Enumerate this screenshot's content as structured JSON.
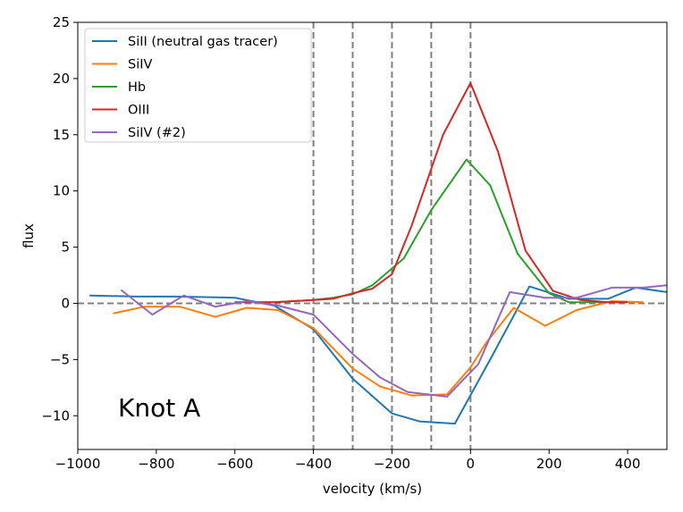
{
  "chart_data": {
    "type": "line",
    "title": "",
    "xlabel": "velocity (km/s)",
    "ylabel": "flux",
    "xlim": [
      -1000,
      500
    ],
    "ylim": [
      -13,
      25
    ],
    "xticks": [
      -1000,
      -800,
      -600,
      -400,
      -200,
      0,
      200,
      400
    ],
    "yticks": [
      -10,
      -5,
      0,
      5,
      10,
      15,
      20,
      25
    ],
    "xtick_labels": [
      "−1000",
      "−800",
      "−600",
      "−400",
      "−200",
      "0",
      "200",
      "400"
    ],
    "ytick_labels": [
      "−10",
      "−5",
      "0",
      "5",
      "10",
      "15",
      "20",
      "25"
    ],
    "grid": false,
    "legend_position": "top-left",
    "annotation": "Knot A",
    "reference_lines": {
      "vertical": [
        -400,
        -300,
        -200,
        -100,
        0
      ],
      "horizontal": [
        0
      ],
      "style": "dashed",
      "color": "#808080"
    },
    "series": [
      {
        "name": "SiII (neutral gas tracer)",
        "color": "#1f77b4",
        "x": [
          -970,
          -850,
          -750,
          -600,
          -500,
          -400,
          -300,
          -200,
          -130,
          -40,
          50,
          150,
          250,
          350,
          420,
          500
        ],
        "y": [
          0.7,
          0.6,
          0.6,
          0.5,
          -0.2,
          -2.3,
          -6.7,
          -9.8,
          -10.5,
          -10.7,
          -5.0,
          1.5,
          0.4,
          0.4,
          1.4,
          1.0
        ]
      },
      {
        "name": "SiIV",
        "color": "#ff7f0e",
        "x": [
          -910,
          -830,
          -740,
          -650,
          -570,
          -490,
          -400,
          -300,
          -230,
          -150,
          -60,
          0,
          40,
          110,
          190,
          270,
          360,
          440
        ],
        "y": [
          -0.9,
          -0.3,
          -0.3,
          -1.2,
          -0.4,
          -0.6,
          -2.2,
          -5.8,
          -7.4,
          -8.2,
          -8.1,
          -5.7,
          -3.5,
          -0.4,
          -2.0,
          -0.6,
          0.2,
          0.1
        ]
      },
      {
        "name": "Hb",
        "color": "#2ca02c",
        "x": [
          -600,
          -500,
          -400,
          -350,
          -300,
          -250,
          -170,
          -100,
          -10,
          50,
          120,
          200,
          250,
          350,
          400
        ],
        "y": [
          0.1,
          0.1,
          0.3,
          0.5,
          0.8,
          1.6,
          4.0,
          8.3,
          12.8,
          10.5,
          4.4,
          0.9,
          0.1,
          0.1,
          0.1
        ]
      },
      {
        "name": "OIII",
        "color": "#d62728",
        "x": [
          -600,
          -500,
          -400,
          -350,
          -300,
          -250,
          -200,
          -150,
          -70,
          0,
          70,
          140,
          210,
          280,
          350,
          400
        ],
        "y": [
          0.1,
          0.1,
          0.3,
          0.4,
          0.9,
          1.3,
          2.6,
          6.9,
          15.0,
          19.6,
          13.5,
          4.7,
          1.1,
          0.3,
          0.1,
          0.1
        ]
      },
      {
        "name": "SiIV (#2)",
        "color": "#9467bd",
        "x": [
          -890,
          -810,
          -730,
          -650,
          -570,
          -490,
          -400,
          -300,
          -230,
          -160,
          -60,
          20,
          100,
          190,
          270,
          360,
          440,
          500
        ],
        "y": [
          1.2,
          -1.0,
          0.7,
          -0.3,
          0.2,
          -0.2,
          -1.0,
          -4.5,
          -6.6,
          -7.9,
          -8.3,
          -5.4,
          1.0,
          0.5,
          0.5,
          1.4,
          1.4,
          1.6
        ]
      }
    ]
  }
}
